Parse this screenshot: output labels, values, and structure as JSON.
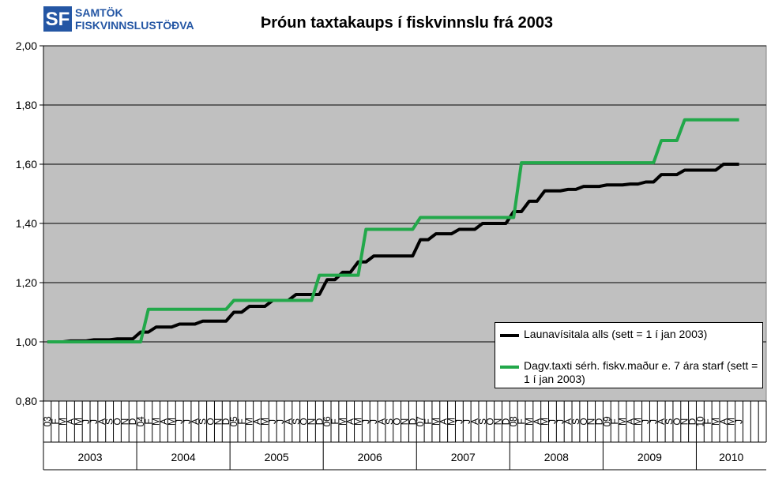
{
  "logo": {
    "mark": "SF",
    "line1": "SAMTÖK",
    "line2": "FISKVINNSLUSTÖÐVA"
  },
  "chart_data": {
    "type": "line",
    "title": "Þróun taxtakaups  í fiskvinnslu  frá 2003",
    "categories": [
      "03",
      "F",
      "M",
      "A",
      "M",
      "J",
      "J",
      "A",
      "S",
      "O",
      "N",
      "D",
      "04",
      "F",
      "M",
      "A",
      "M",
      "J",
      "J",
      "A",
      "S",
      "O",
      "N",
      "D",
      "05",
      "F",
      "M",
      "A",
      "M",
      "J",
      "J",
      "A",
      "S",
      "O",
      "N",
      "D",
      "06",
      "F",
      "M",
      "A",
      "M",
      "J",
      "J",
      "A",
      "S",
      "O",
      "N",
      "D",
      "07",
      "F",
      "M",
      "A",
      "M",
      "J",
      "J",
      "A",
      "S",
      "O",
      "N",
      "D",
      "08",
      "F",
      "M",
      "A",
      "M",
      "J",
      "J",
      "A",
      "S",
      "O",
      "N",
      "D",
      "09",
      "F",
      "M",
      "A",
      "M",
      "J",
      "J",
      "A",
      "S",
      "O",
      "N",
      "D",
      "10",
      "F",
      "M",
      "A",
      "M",
      "J",
      null,
      null,
      null
    ],
    "years": [
      "2003",
      "2004",
      "2005",
      "2006",
      "2007",
      "2008",
      "2009",
      "2010"
    ],
    "series": [
      {
        "name": "Launavísitala alls (sett = 1 í jan 2003)",
        "color": "#000000",
        "values": [
          1,
          1,
          1,
          1.003,
          1.003,
          1.003,
          1.007,
          1.007,
          1.007,
          1.01,
          1.01,
          1.01,
          1.033,
          1.033,
          1.05,
          1.05,
          1.05,
          1.06,
          1.06,
          1.06,
          1.07,
          1.07,
          1.07,
          1.07,
          1.1,
          1.1,
          1.12,
          1.12,
          1.12,
          1.14,
          1.14,
          1.14,
          1.16,
          1.16,
          1.16,
          1.16,
          1.21,
          1.21,
          1.235,
          1.235,
          1.27,
          1.27,
          1.29,
          1.29,
          1.29,
          1.29,
          1.29,
          1.29,
          1.345,
          1.345,
          1.365,
          1.365,
          1.365,
          1.38,
          1.38,
          1.38,
          1.4,
          1.4,
          1.4,
          1.4,
          1.44,
          1.44,
          1.475,
          1.475,
          1.51,
          1.51,
          1.51,
          1.515,
          1.515,
          1.525,
          1.525,
          1.525,
          1.53,
          1.53,
          1.53,
          1.533,
          1.533,
          1.54,
          1.54,
          1.565,
          1.565,
          1.565,
          1.58,
          1.58,
          1.58,
          1.58,
          1.58,
          1.6,
          1.6,
          1.6,
          null,
          null,
          null
        ]
      },
      {
        "name": "Dagv.taxti sérh. fiskv.maður e. 7 ára starf (sett = 1 í jan 2003)",
        "color": "#22a84a",
        "values": [
          1,
          1,
          1,
          1,
          1,
          1,
          1,
          1,
          1,
          1,
          1,
          1,
          1,
          1.11,
          1.11,
          1.11,
          1.11,
          1.11,
          1.11,
          1.11,
          1.11,
          1.11,
          1.11,
          1.11,
          1.14,
          1.14,
          1.14,
          1.14,
          1.14,
          1.14,
          1.14,
          1.14,
          1.14,
          1.14,
          1.14,
          1.225,
          1.225,
          1.225,
          1.225,
          1.225,
          1.225,
          1.38,
          1.38,
          1.38,
          1.38,
          1.38,
          1.38,
          1.38,
          1.42,
          1.42,
          1.42,
          1.42,
          1.42,
          1.42,
          1.42,
          1.42,
          1.42,
          1.42,
          1.42,
          1.42,
          1.42,
          1.605,
          1.605,
          1.605,
          1.605,
          1.605,
          1.605,
          1.605,
          1.605,
          1.605,
          1.605,
          1.605,
          1.605,
          1.605,
          1.605,
          1.605,
          1.605,
          1.605,
          1.605,
          1.68,
          1.68,
          1.68,
          1.75,
          1.75,
          1.75,
          1.75,
          1.75,
          1.75,
          1.75,
          1.75,
          null,
          null,
          null
        ]
      }
    ],
    "ylim": [
      0.8,
      2.0
    ],
    "yticks": [
      {
        "value": 0.8,
        "label": "0,80"
      },
      {
        "value": 1.0,
        "label": "1,00"
      },
      {
        "value": 1.2,
        "label": "1,20"
      },
      {
        "value": 1.4,
        "label": "1,40"
      },
      {
        "value": 1.6,
        "label": "1,60"
      },
      {
        "value": 1.8,
        "label": "1,80"
      },
      {
        "value": 2.0,
        "label": "2,00"
      }
    ],
    "grid": true,
    "legend": "lower right",
    "plot_background": "#c0c0c0"
  }
}
